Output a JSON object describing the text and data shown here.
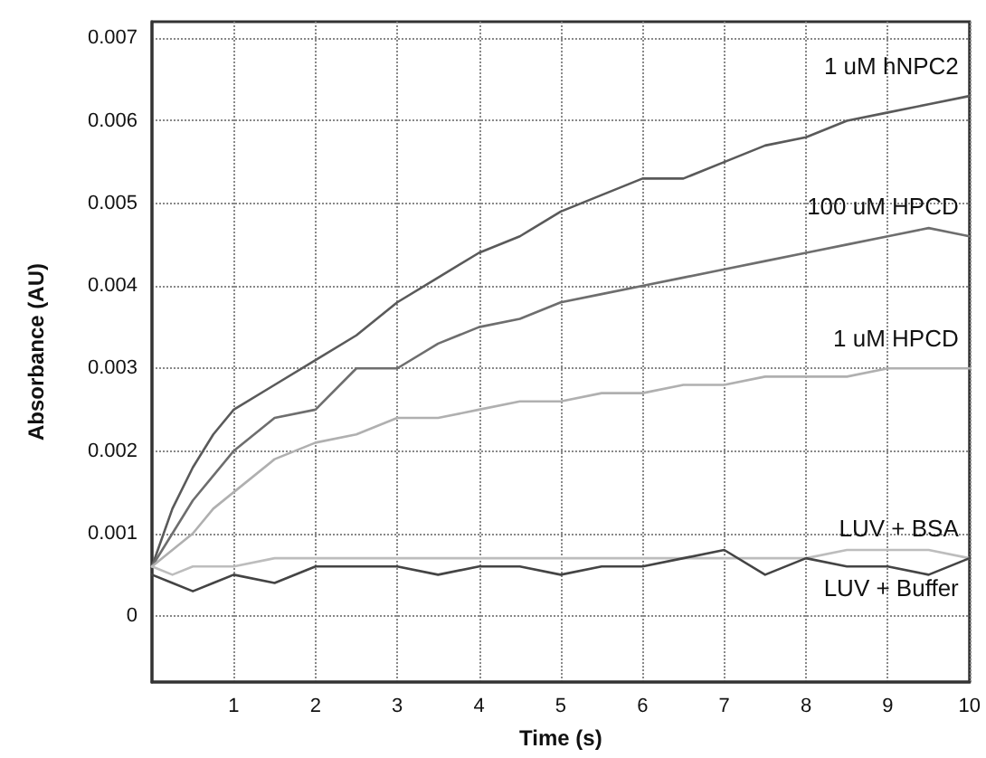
{
  "chart_data": {
    "type": "line",
    "xlabel": "Time (s)",
    "ylabel": "Absorbance (AU)",
    "xlim": [
      0,
      10
    ],
    "xticks": [
      1,
      2,
      3,
      4,
      5,
      6,
      7,
      8,
      9,
      10
    ],
    "ylim": [
      -0.0008,
      0.0072
    ],
    "yticks": [
      0,
      0.001,
      0.002,
      0.003,
      0.004,
      0.005,
      0.006,
      0.007
    ],
    "grid": true,
    "legend": false,
    "marker": "none",
    "line_style": "solid",
    "x": [
      0,
      0.25,
      0.5,
      0.75,
      1,
      1.5,
      2,
      2.5,
      3,
      3.5,
      4,
      4.5,
      5,
      5.5,
      6,
      6.5,
      7,
      7.5,
      8,
      8.5,
      9,
      9.5,
      10
    ],
    "series": [
      {
        "name": "1 uM hNPC2",
        "color": "#5a5a5a",
        "values": [
          0.0006,
          0.0013,
          0.0018,
          0.0022,
          0.0025,
          0.0028,
          0.0031,
          0.0034,
          0.0038,
          0.0041,
          0.0044,
          0.0046,
          0.0049,
          0.0051,
          0.0053,
          0.0053,
          0.0055,
          0.0057,
          0.0058,
          0.006,
          0.0061,
          0.0062,
          0.0063
        ]
      },
      {
        "name": "100 uM HPCD",
        "color": "#6e6e6e",
        "values": [
          0.0006,
          0.001,
          0.0014,
          0.0017,
          0.002,
          0.0024,
          0.0025,
          0.003,
          0.003,
          0.0033,
          0.0035,
          0.0036,
          0.0038,
          0.0039,
          0.004,
          0.0041,
          0.0042,
          0.0043,
          0.0044,
          0.0045,
          0.0046,
          0.0047,
          0.0046
        ]
      },
      {
        "name": "1 uM HPCD",
        "color": "#b0b0b0",
        "values": [
          0.0006,
          0.0008,
          0.001,
          0.0013,
          0.0015,
          0.0019,
          0.0021,
          0.0022,
          0.0024,
          0.0024,
          0.0025,
          0.0026,
          0.0026,
          0.0027,
          0.0027,
          0.0028,
          0.0028,
          0.0029,
          0.0029,
          0.0029,
          0.003,
          0.003,
          0.003
        ]
      },
      {
        "name": "LUV + BSA",
        "color": "#bdbdbd",
        "values": [
          0.0006,
          0.0005,
          0.0006,
          0.0006,
          0.0006,
          0.0007,
          0.0007,
          0.0007,
          0.0007,
          0.0007,
          0.0007,
          0.0007,
          0.0007,
          0.0007,
          0.0007,
          0.0007,
          0.0007,
          0.0007,
          0.0007,
          0.0008,
          0.0008,
          0.0008,
          0.0007
        ]
      },
      {
        "name": "LUV + Buffer",
        "color": "#444444",
        "values": [
          0.0005,
          0.0004,
          0.0003,
          0.0004,
          0.0005,
          0.0004,
          0.0006,
          0.0006,
          0.0006,
          0.0005,
          0.0006,
          0.0006,
          0.0005,
          0.0006,
          0.0006,
          0.0007,
          0.0008,
          0.0005,
          0.0007,
          0.0006,
          0.0006,
          0.0005,
          0.0007
        ]
      }
    ]
  }
}
